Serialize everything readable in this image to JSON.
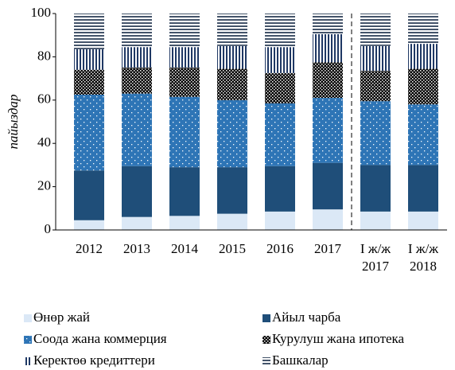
{
  "chart_data": {
    "type": "stacked_bar",
    "y_label": "пайыздар",
    "categories": [
      "2012",
      "2013",
      "2014",
      "2015",
      "2016",
      "2017",
      "I ж/ж 2017",
      "I ж/ж 2018"
    ],
    "series": [
      {
        "name": "Өнөр жай",
        "color": "#dbe8f6",
        "pattern": "solid",
        "values": [
          4.5,
          6,
          6.5,
          7.5,
          8.5,
          9.5,
          8.5,
          8.5
        ]
      },
      {
        "name": "Айыл чарба",
        "color": "#1f4e79",
        "pattern": "solid",
        "values": [
          23,
          23.5,
          22.5,
          21.5,
          21,
          21.5,
          21.5,
          21.5
        ]
      },
      {
        "name": "Соода жана коммерция",
        "color": "#2e75b6",
        "pattern": "dots",
        "values": [
          35,
          33.5,
          32.5,
          31,
          29,
          30,
          29.5,
          28
        ]
      },
      {
        "name": "Курулуш жана ипотека",
        "color": "#000000",
        "pattern": "check",
        "values": [
          11.5,
          12,
          13.5,
          14.5,
          14,
          16.5,
          14,
          16.5
        ]
      },
      {
        "name": "Керектөө кредиттери",
        "color": "#1f3864",
        "pattern": "vstripes",
        "values": [
          9.5,
          9.5,
          9.5,
          10.5,
          12,
          13,
          11.5,
          11.5
        ]
      },
      {
        "name": "Башкалар",
        "color": "#44546a",
        "pattern": "hstripes",
        "values": [
          16.5,
          15.5,
          15.5,
          15,
          15.5,
          9.5,
          15,
          14
        ]
      }
    ],
    "ylim": [
      0,
      100
    ],
    "yticks": [
      0,
      20,
      40,
      60,
      80,
      100
    ],
    "grid": false,
    "legend": "bottom"
  }
}
